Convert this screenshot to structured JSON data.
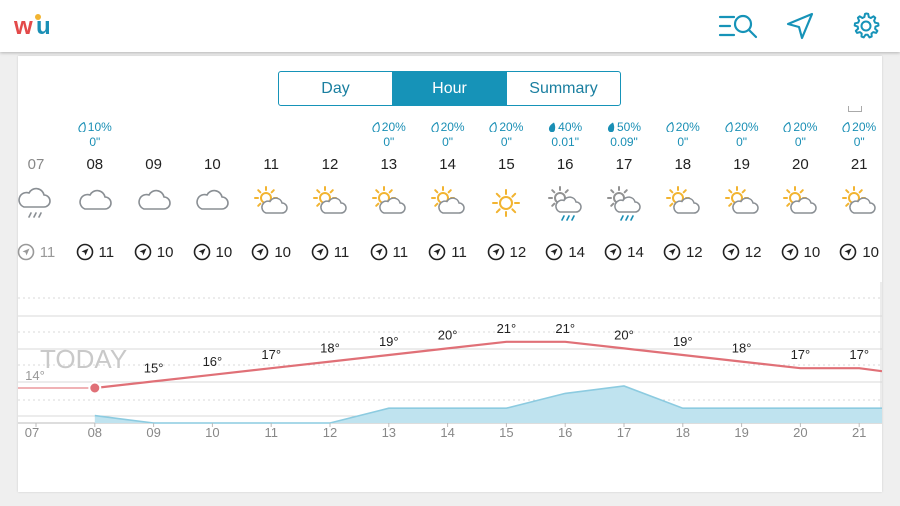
{
  "app": {
    "logo_text": "wu"
  },
  "header": {
    "icons": [
      "search-list-icon",
      "location-arrow-icon",
      "settings-gear-icon"
    ]
  },
  "tabs": [
    {
      "label": "Day",
      "active": false
    },
    {
      "label": "Hour",
      "active": true
    },
    {
      "label": "Summary",
      "active": false
    }
  ],
  "hours": [
    {
      "hour": "07",
      "past": true,
      "precip_pct": "",
      "precip_amt": "",
      "icon": "cloud-drizzle-icon",
      "wind": "11"
    },
    {
      "hour": "08",
      "past": false,
      "precip_pct": "10%",
      "precip_amt": "0\"",
      "icon": "cloud-icon",
      "wind": "11"
    },
    {
      "hour": "09",
      "past": false,
      "precip_pct": "",
      "precip_amt": "",
      "icon": "cloud-icon",
      "wind": "10"
    },
    {
      "hour": "10",
      "past": false,
      "precip_pct": "",
      "precip_amt": "",
      "icon": "cloud-icon",
      "wind": "10"
    },
    {
      "hour": "11",
      "past": false,
      "precip_pct": "",
      "precip_amt": "",
      "icon": "partly-cloudy-icon",
      "wind": "10"
    },
    {
      "hour": "12",
      "past": false,
      "precip_pct": "",
      "precip_amt": "",
      "icon": "partly-cloudy-icon",
      "wind": "11"
    },
    {
      "hour": "13",
      "past": false,
      "precip_pct": "20%",
      "precip_amt": "0\"",
      "icon": "partly-cloudy-icon",
      "wind": "11"
    },
    {
      "hour": "14",
      "past": false,
      "precip_pct": "20%",
      "precip_amt": "0\"",
      "icon": "partly-cloudy-icon",
      "wind": "11"
    },
    {
      "hour": "15",
      "past": false,
      "precip_pct": "20%",
      "precip_amt": "0\"",
      "icon": "sun-icon",
      "wind": "12"
    },
    {
      "hour": "16",
      "past": false,
      "precip_pct": "40%",
      "precip_amt": "0.01\"",
      "icon": "partly-cloudy-rain-icon",
      "wind": "14"
    },
    {
      "hour": "17",
      "past": false,
      "precip_pct": "50%",
      "precip_amt": "0.09\"",
      "icon": "partly-cloudy-rain-icon",
      "wind": "14"
    },
    {
      "hour": "18",
      "past": false,
      "precip_pct": "20%",
      "precip_amt": "0\"",
      "icon": "partly-cloudy-icon",
      "wind": "12"
    },
    {
      "hour": "19",
      "past": false,
      "precip_pct": "20%",
      "precip_amt": "0\"",
      "icon": "partly-cloudy-icon",
      "wind": "12"
    },
    {
      "hour": "20",
      "past": false,
      "precip_pct": "20%",
      "precip_amt": "0\"",
      "icon": "partly-cloudy-icon",
      "wind": "10"
    },
    {
      "hour": "21",
      "past": false,
      "precip_pct": "20%",
      "precip_amt": "0\"",
      "icon": "partly-cloudy-icon",
      "wind": "10"
    }
  ],
  "graph": {
    "today_label": "TODAY",
    "temps": [
      "14°",
      "15°",
      "16°",
      "17°",
      "18°",
      "19°",
      "20°",
      "21°",
      "21°",
      "20°",
      "19°",
      "18°",
      "17°",
      "17°"
    ],
    "x_labels": [
      "07",
      "08",
      "09",
      "10",
      "11",
      "12",
      "13",
      "14",
      "15",
      "16",
      "17",
      "18",
      "19",
      "20",
      "21"
    ],
    "colors": {
      "temp_line": "#e07077",
      "precip_fill": "#bfe3ef",
      "precip_line": "#8ccbe0",
      "accent": "#1693b8"
    }
  },
  "chart_data": {
    "type": "line",
    "x": [
      "07",
      "08",
      "09",
      "10",
      "11",
      "12",
      "13",
      "14",
      "15",
      "16",
      "17",
      "18",
      "19",
      "20",
      "21"
    ],
    "series": [
      {
        "values": [
          14,
          14,
          15,
          16,
          17,
          18,
          19,
          20,
          21,
          21,
          20,
          19,
          18,
          17,
          17
        ]
      },
      {
        "values": [
          null,
          10,
          0,
          0,
          0,
          0,
          20,
          20,
          20,
          40,
          50,
          20,
          20,
          20,
          20
        ]
      }
    ]
  }
}
